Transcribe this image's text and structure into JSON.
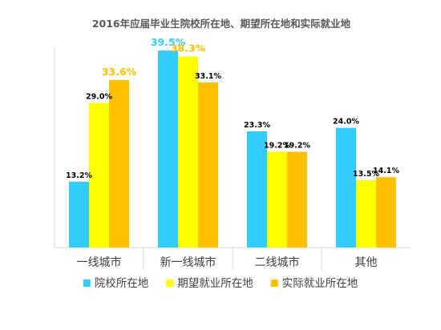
{
  "chart_data": {
    "type": "bar",
    "title": "2016年应届毕业生院校所在地、期望所在地和实际就业地",
    "categories": [
      "一线城市",
      "新一线城市",
      "二线城市",
      "其他"
    ],
    "series": [
      {
        "name": "院校所在地",
        "color": "#33CCFF",
        "values": [
          13.2,
          39.5,
          23.3,
          24.0
        ],
        "labels": [
          "13.2%",
          "39.5%",
          "23.3%",
          "24.0%"
        ]
      },
      {
        "name": "期望就业所在地",
        "color": "#FFFF00",
        "values": [
          29.0,
          38.3,
          19.2,
          13.5
        ],
        "labels": [
          "29.0%",
          "38.3%",
          "19.2%",
          "13.5%"
        ]
      },
      {
        "name": "实际就业所在地",
        "color": "#FFC000",
        "values": [
          33.6,
          33.1,
          19.2,
          14.1
        ],
        "labels": [
          "33.6%",
          "33.1%",
          "19.2%",
          "14.1%"
        ]
      }
    ],
    "highlight_colors": {
      "39.5%": "#33CCFF",
      "38.3%": "#FFC000",
      "33.6%": "#FFC000"
    },
    "label_color": "#000000",
    "ylim": [
      0,
      40
    ],
    "grid": false,
    "legend_position": "bottom"
  }
}
